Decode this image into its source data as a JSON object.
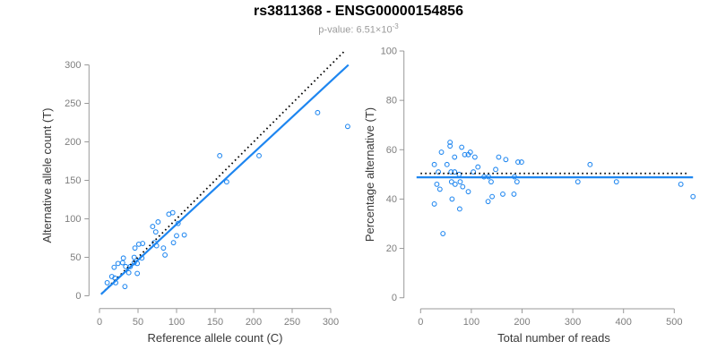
{
  "header": {
    "title": "rs3811368 - ENSG00000154856",
    "subtitle_prefix": "p-value: 6.51×10",
    "subtitle_exponent": "-3"
  },
  "colors": {
    "accent_blue": "#1e86f0",
    "dotted_black": "#000000",
    "axis_gray": "#999999",
    "tick_label_gray": "#7e7e7e",
    "axis_title_gray": "#383838",
    "subtitle_gray": "#9b9b9b"
  },
  "chart_data": [
    {
      "name": "left-chart-allele-counts",
      "type": "scatter",
      "xlabel": "Reference allele count (C)",
      "ylabel": "Alternative allele count (T)",
      "x_ticks": [
        0,
        50,
        100,
        150,
        200,
        250,
        300
      ],
      "y_ticks": [
        0,
        50,
        100,
        150,
        200,
        250,
        300
      ],
      "xlim": [
        -14,
        327
      ],
      "ylim": [
        -15,
        320
      ],
      "grid": false,
      "point_color": "#1e86f0",
      "points": [
        [
          10,
          17
        ],
        [
          16,
          25
        ],
        [
          20,
          23
        ],
        [
          21,
          17
        ],
        [
          33,
          12
        ],
        [
          19,
          37
        ],
        [
          24,
          42
        ],
        [
          30,
          43
        ],
        [
          34,
          38
        ],
        [
          40,
          38
        ],
        [
          45,
          43
        ],
        [
          49,
          42
        ],
        [
          38,
          30
        ],
        [
          49,
          29
        ],
        [
          31,
          49
        ],
        [
          45,
          50
        ],
        [
          55,
          49
        ],
        [
          46,
          62
        ],
        [
          51,
          67
        ],
        [
          56,
          68
        ],
        [
          69,
          90
        ],
        [
          76,
          96
        ],
        [
          73,
          83
        ],
        [
          71,
          69
        ],
        [
          74,
          65
        ],
        [
          83,
          62
        ],
        [
          85,
          53
        ],
        [
          90,
          106
        ],
        [
          95,
          108
        ],
        [
          96,
          69
        ],
        [
          100,
          78
        ],
        [
          102,
          94
        ],
        [
          110,
          79
        ],
        [
          156,
          182
        ],
        [
          165,
          148
        ],
        [
          207,
          182
        ],
        [
          283,
          238
        ],
        [
          322,
          220
        ]
      ],
      "lines": [
        {
          "name": "identity-line",
          "style": "dotted",
          "color": "#000000",
          "x1": 3,
          "y1": 3,
          "x2": 319,
          "y2": 319
        },
        {
          "name": "regression-line",
          "style": "solid",
          "color": "#1e86f0",
          "x1": 2,
          "y1": 2,
          "x2": 323,
          "y2": 300
        }
      ]
    },
    {
      "name": "right-chart-percentage-alternative",
      "type": "scatter",
      "xlabel": "Total number of reads",
      "ylabel": "Percentage alternative (T)",
      "x_ticks": [
        0,
        100,
        200,
        300,
        400,
        500
      ],
      "y_ticks": [
        0,
        20,
        40,
        60,
        80,
        100
      ],
      "xlim": [
        -10,
        545
      ],
      "ylim": [
        0,
        100
      ],
      "grid": false,
      "point_color": "#1e86f0",
      "points": [
        [
          27,
          54
        ],
        [
          41,
          59
        ],
        [
          35,
          51
        ],
        [
          32,
          46
        ],
        [
          38,
          44
        ],
        [
          27,
          38
        ],
        [
          52,
          54
        ],
        [
          44,
          26
        ],
        [
          58,
          61.5
        ],
        [
          58,
          63
        ],
        [
          67,
          57
        ],
        [
          60,
          51
        ],
        [
          67,
          51
        ],
        [
          61,
          47
        ],
        [
          68,
          46
        ],
        [
          62,
          40
        ],
        [
          81,
          61
        ],
        [
          76,
          50
        ],
        [
          78,
          47
        ],
        [
          83,
          45
        ],
        [
          77,
          36
        ],
        [
          87,
          58
        ],
        [
          94,
          58
        ],
        [
          94,
          43
        ],
        [
          98,
          59
        ],
        [
          107,
          57
        ],
        [
          104,
          51
        ],
        [
          113,
          53
        ],
        [
          125,
          49
        ],
        [
          134,
          49
        ],
        [
          133,
          39
        ],
        [
          141,
          41
        ],
        [
          139,
          47
        ],
        [
          148,
          52
        ],
        [
          154,
          57
        ],
        [
          162,
          42
        ],
        [
          168,
          56
        ],
        [
          184,
          42
        ],
        [
          185,
          49
        ],
        [
          190,
          47
        ],
        [
          192,
          55
        ],
        [
          199,
          55
        ],
        [
          310,
          47
        ],
        [
          334,
          54
        ],
        [
          386,
          47
        ],
        [
          513,
          46
        ],
        [
          537,
          41
        ]
      ],
      "lines": [
        {
          "name": "expected-percentage-line",
          "style": "dotted",
          "color": "#000000",
          "x1": 0,
          "y1": 50.4,
          "x2": 527,
          "y2": 50.4
        },
        {
          "name": "fitted-percentage-line",
          "style": "solid",
          "color": "#1e86f0",
          "x1": -8,
          "y1": 48.8,
          "x2": 537,
          "y2": 48.8
        }
      ]
    }
  ]
}
